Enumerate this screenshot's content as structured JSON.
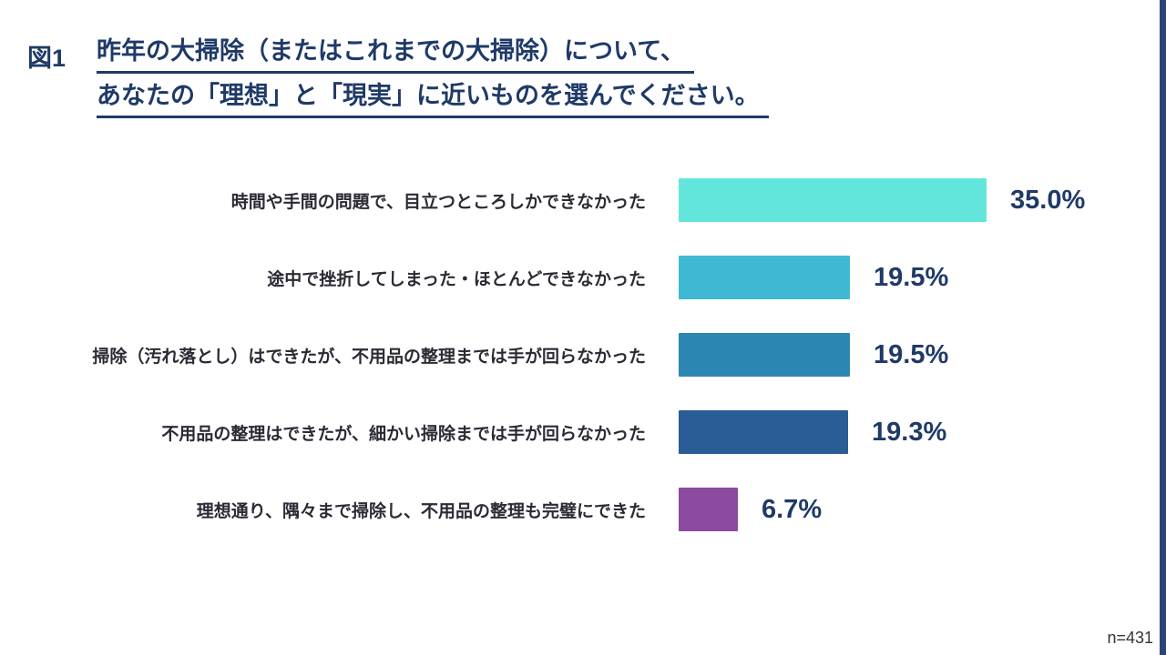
{
  "header": {
    "figure_label": "図1",
    "title_line1": "昨年の大掃除（またはこれまでの大掃除）について、",
    "title_line2": "あなたの「理想」と「現実」に近いものを選んでください。"
  },
  "footnote": "n=431",
  "colors": {
    "title": "#1f3a68",
    "value_label": "#1f3a68",
    "edge_strip": "#2e4474"
  },
  "chart_data": {
    "type": "bar",
    "orientation": "horizontal",
    "title": "昨年の大掃除（またはこれまでの大掃除）について、あなたの「理想」と「現実」に近いものを選んでください。",
    "categories": [
      "時間や手間の問題で、目立つところしかできなかった",
      "途中で挫折してしまった・ほとんどできなかった",
      "掃除（汚れ落とし）はできたが、不用品の整理までは手が回らなかった",
      "不用品の整理はできたが、細かい掃除までは手が回らなかった",
      "理想通り、隅々まで掃除し、不用品の整理も完璧にできた"
    ],
    "values": [
      35.0,
      19.5,
      19.5,
      19.3,
      6.7
    ],
    "value_labels": [
      "35.0%",
      "19.5%",
      "19.5%",
      "19.3%",
      "6.7%"
    ],
    "bar_colors": [
      "#62e6db",
      "#3fb9d3",
      "#2c86b2",
      "#2a5c96",
      "#8c4ba0"
    ],
    "xlim": [
      0,
      100
    ],
    "grid": false,
    "legend": "none",
    "sample_size_note": "n=431"
  }
}
